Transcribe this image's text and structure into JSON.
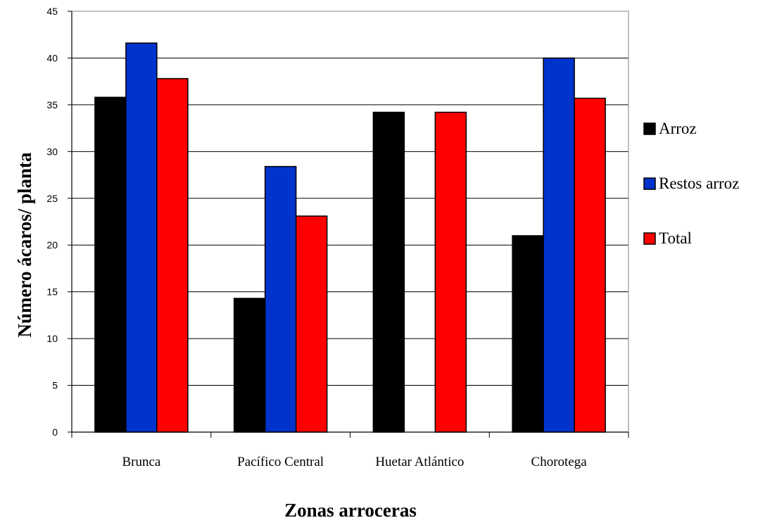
{
  "chart_data": {
    "type": "bar",
    "title": "",
    "xlabel": "Zonas arroceras",
    "ylabel": "Número ácaros/ planta",
    "categories": [
      "Brunca",
      "Pacífico Central",
      "Huetar Atlántico",
      "Chorotega"
    ],
    "series": [
      {
        "name": "Arroz",
        "color": "#000000",
        "values": [
          35.8,
          14.3,
          34.2,
          21.0
        ]
      },
      {
        "name": "Restos arroz",
        "color": "#0033cc",
        "values": [
          41.6,
          28.4,
          null,
          40.0
        ]
      },
      {
        "name": "Total",
        "color": "#ff0000",
        "values": [
          37.8,
          23.1,
          34.2,
          35.7
        ]
      }
    ],
    "ylim": [
      0,
      45
    ],
    "yticks": [
      0,
      5,
      10,
      15,
      20,
      25,
      30,
      35,
      40,
      45
    ],
    "grid": true,
    "legend_position": "right"
  }
}
